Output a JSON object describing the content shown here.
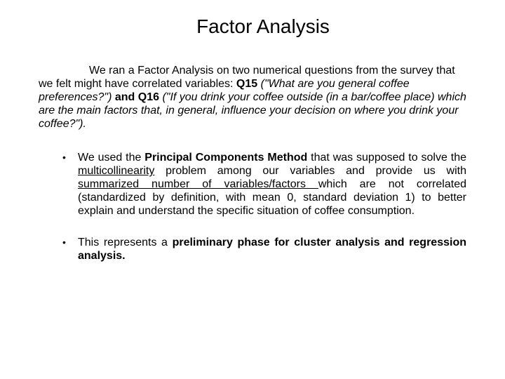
{
  "title": "Factor Analysis",
  "intro": {
    "t1": "We ran a Factor Analysis on two numerical questions from the survey that we felt might have correlated variables: ",
    "q15": "Q15 ",
    "q15txt": "(\"What are you general coffee preferences?\")",
    "and": " and ",
    "q16": "Q16 ",
    "q16txt": "(\"If you drink your coffee outside (in a bar/coffee place) which are the main factors that, in general, influence your decision on where you drink your coffee?\")",
    "dot": "."
  },
  "b1": {
    "t1": "We used the ",
    "pcm": "Principal Components Method",
    "t2": " that was supposed to solve the ",
    "mc": "multicollinearity",
    "t3": " problem  among our variables and provide us with ",
    "sum": "summarized number of variables/factors ",
    "t4": "which are not correlated (standardized by definition, with mean 0, standard deviation 1) to better explain and understand the specific situation of coffee consumption."
  },
  "b2": {
    "t1": "This represents a ",
    "ph": "preliminary phase for cluster analysis and regression analysis."
  }
}
